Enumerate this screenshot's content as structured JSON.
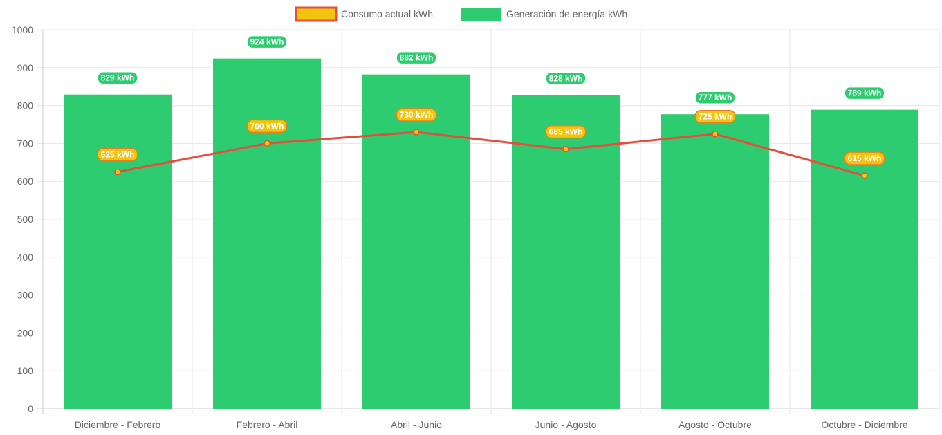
{
  "chart_data": {
    "type": "bar",
    "categories": [
      "Diciembre - Febrero",
      "Febrero - Abril",
      "Abril - Junio",
      "Junio - Agosto",
      "Agosto - Octubre",
      "Octubre - Diciembre"
    ],
    "series": [
      {
        "name": "Consumo actual kWh",
        "type": "line",
        "values": [
          625,
          700,
          730,
          685,
          725,
          615
        ],
        "labels": [
          "625 kWh",
          "700 kWh",
          "730 kWh",
          "685 kWh",
          "725 kWh",
          "615 kWh"
        ],
        "color": "#e74c3c",
        "fill": "#f1c40f"
      },
      {
        "name": "Generación de energía kWh",
        "type": "bar",
        "values": [
          829,
          924,
          882,
          828,
          777,
          789
        ],
        "labels": [
          "829 kWh",
          "924 kWh",
          "882 kWh",
          "828 kWh",
          "777 kWh",
          "789 kWh"
        ],
        "color": "#2ecc71"
      }
    ],
    "ylim": [
      0,
      1000
    ],
    "yticks": [
      "0",
      "100",
      "200",
      "300",
      "400",
      "500",
      "600",
      "700",
      "800",
      "900",
      "1000"
    ],
    "grid": true,
    "legend_position": "top-center"
  }
}
